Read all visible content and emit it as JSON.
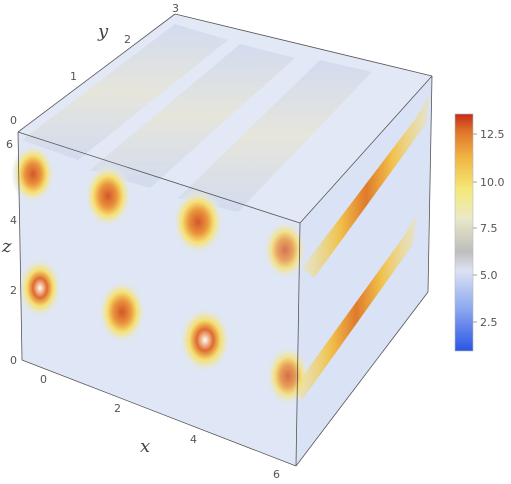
{
  "chart_data": {
    "type": "density-plot-3d",
    "title": "",
    "axes": {
      "x": {
        "label": "x",
        "range": [
          0,
          6.28
        ],
        "ticks": [
          "0",
          "2",
          "4",
          "6"
        ]
      },
      "y": {
        "label": "y",
        "range": [
          0,
          3
        ],
        "ticks": [
          "0",
          "1",
          "2",
          "3"
        ]
      },
      "z": {
        "label": "z",
        "range": [
          0,
          6.28
        ],
        "ticks": [
          "0",
          "2",
          "4",
          "6"
        ]
      }
    },
    "colorbar": {
      "range": [
        0.8,
        13.8
      ],
      "ticks": [
        "2.5",
        "5.0",
        "7.5",
        "10.0",
        "12.5"
      ],
      "colors": [
        "#2a55e6",
        "#8ea8f0",
        "#dde3f2",
        "#cfcfcf",
        "#f5ef9a",
        "#f2c34a",
        "#e5842e",
        "#c9301b"
      ]
    },
    "tube_centers_xz": [
      {
        "x": 0.0,
        "z": 4.71,
        "peak": 12.5
      },
      {
        "x": 1.57,
        "z": 4.71,
        "peak": 12.5
      },
      {
        "x": 3.14,
        "z": 4.71,
        "peak": 12.5
      },
      {
        "x": 4.71,
        "z": 4.71,
        "peak": 12.5
      },
      {
        "x": 0.0,
        "z": 1.57,
        "peak": 12.5
      },
      {
        "x": 1.57,
        "z": 1.57,
        "peak": 12.5
      },
      {
        "x": 3.14,
        "z": 1.57,
        "peak": 12.5
      },
      {
        "x": 4.71,
        "z": 1.57,
        "peak": 12.5
      }
    ],
    "grid": false,
    "legend": "right"
  }
}
